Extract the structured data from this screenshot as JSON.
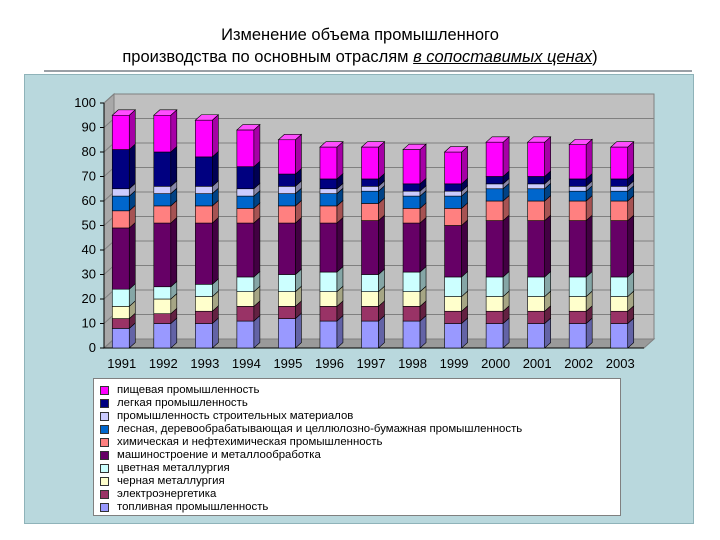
{
  "title": {
    "line1": "Изменение объема промышленного",
    "line2_prefix": "производства по основным отраслям ",
    "line2_underlined": "в сопоставимых ценах",
    "line2_suffix": ")"
  },
  "chart_data": {
    "type": "bar",
    "stacked": true,
    "categories": [
      "1991",
      "1992",
      "1993",
      "1994",
      "1995",
      "1996",
      "1997",
      "1998",
      "1999",
      "2000",
      "2001",
      "2002",
      "2003"
    ],
    "ylim": [
      0,
      100
    ],
    "yticks": [
      0,
      10,
      20,
      30,
      40,
      50,
      60,
      70,
      80,
      90,
      100
    ],
    "legend_position": "bottom",
    "series": [
      {
        "name": "топливная промышленность",
        "color": "#9999ff",
        "values": [
          8,
          10,
          10,
          11,
          12,
          11,
          11,
          11,
          10,
          10,
          10,
          10,
          10
        ]
      },
      {
        "name": "электроэнергетика",
        "color": "#993366",
        "values": [
          4,
          4,
          5,
          6,
          5,
          6,
          6,
          6,
          5,
          5,
          5,
          5,
          5
        ]
      },
      {
        "name": "черная металлургия",
        "color": "#ffffcc",
        "values": [
          5,
          6,
          6,
          6,
          6,
          6,
          6,
          6,
          6,
          6,
          6,
          6,
          6
        ]
      },
      {
        "name": "цветная металлургия",
        "color": "#ccffff",
        "values": [
          7,
          5,
          5,
          6,
          7,
          8,
          7,
          8,
          8,
          8,
          8,
          8,
          8
        ]
      },
      {
        "name": "машиностроение и металлообработка",
        "color": "#660066",
        "values": [
          25,
          26,
          25,
          22,
          21,
          20,
          22,
          20,
          21,
          23,
          23,
          23,
          23
        ]
      },
      {
        "name": "химическая и нефтехимическая промышленность",
        "color": "#ff8080",
        "values": [
          7,
          7,
          7,
          6,
          7,
          7,
          7,
          6,
          7,
          8,
          8,
          8,
          8
        ]
      },
      {
        "name": "лесная, деревообрабатывающая и целлюлозно-бумажная промышленность",
        "color": "#0066cc",
        "values": [
          6,
          5,
          5,
          5,
          5,
          5,
          5,
          5,
          5,
          5,
          5,
          4,
          4
        ]
      },
      {
        "name": "промышленность строительных материалов",
        "color": "#ccccff",
        "values": [
          3,
          3,
          3,
          3,
          3,
          2,
          2,
          2,
          2,
          2,
          2,
          2,
          2
        ]
      },
      {
        "name": "легкая промышленность",
        "color": "#000080",
        "values": [
          16,
          14,
          12,
          9,
          5,
          4,
          3,
          3,
          3,
          3,
          3,
          3,
          3
        ]
      },
      {
        "name": "пищевая промышленность",
        "color": "#ff00ff",
        "values": [
          14,
          15,
          15,
          15,
          14,
          13,
          13,
          14,
          13,
          14,
          14,
          14,
          13
        ]
      }
    ]
  }
}
